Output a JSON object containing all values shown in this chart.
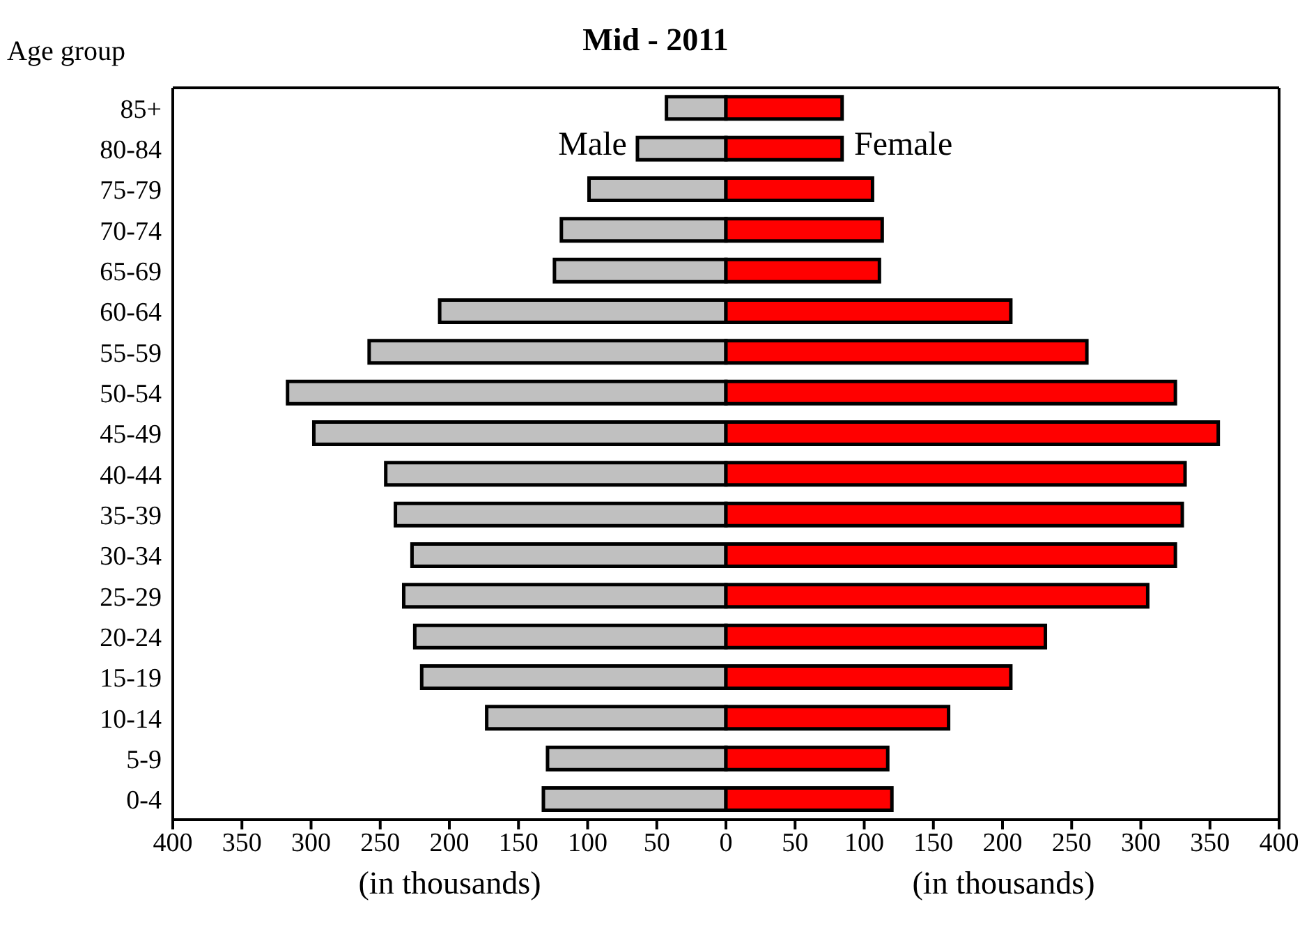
{
  "chart_data": {
    "type": "bar",
    "orientation": "horizontal",
    "stacked": true,
    "title": "Mid - 2011",
    "ylabel": "Age group",
    "xlabel": "(in thousands)",
    "categories": [
      "85+",
      "80-84",
      "75-79",
      "70-74",
      "65-69",
      "60-64",
      "55-59",
      "50-54",
      "45-49",
      "40-44",
      "35-39",
      "30-34",
      "25-29",
      "20-24",
      "15-19",
      "10-14",
      "5-9",
      "0-4"
    ],
    "series": [
      {
        "name": "Male",
        "color": "#c0c0c0",
        "values": [
          -43,
          -64,
          -99,
          -119,
          -124,
          -207,
          -258,
          -317,
          -298,
          -246,
          -239,
          -227,
          -233,
          -225,
          -220,
          -173,
          -129,
          -132
        ]
      },
      {
        "name": "Female",
        "color": "#ff0000",
        "values": [
          84,
          84,
          106,
          113,
          111,
          206,
          261,
          325,
          356,
          332,
          330,
          325,
          305,
          231,
          206,
          161,
          117,
          120
        ]
      }
    ],
    "xlim": [
      -400,
      400
    ],
    "xticks": [
      {
        "value": -400,
        "label": "400"
      },
      {
        "value": -350,
        "label": "350"
      },
      {
        "value": -300,
        "label": "300"
      },
      {
        "value": -250,
        "label": "250"
      },
      {
        "value": -200,
        "label": "200"
      },
      {
        "value": -150,
        "label": "150"
      },
      {
        "value": -100,
        "label": "100"
      },
      {
        "value": -50,
        "label": "50"
      },
      0,
      50,
      100,
      150,
      200,
      250,
      300,
      350,
      400
    ],
    "grid": false
  }
}
